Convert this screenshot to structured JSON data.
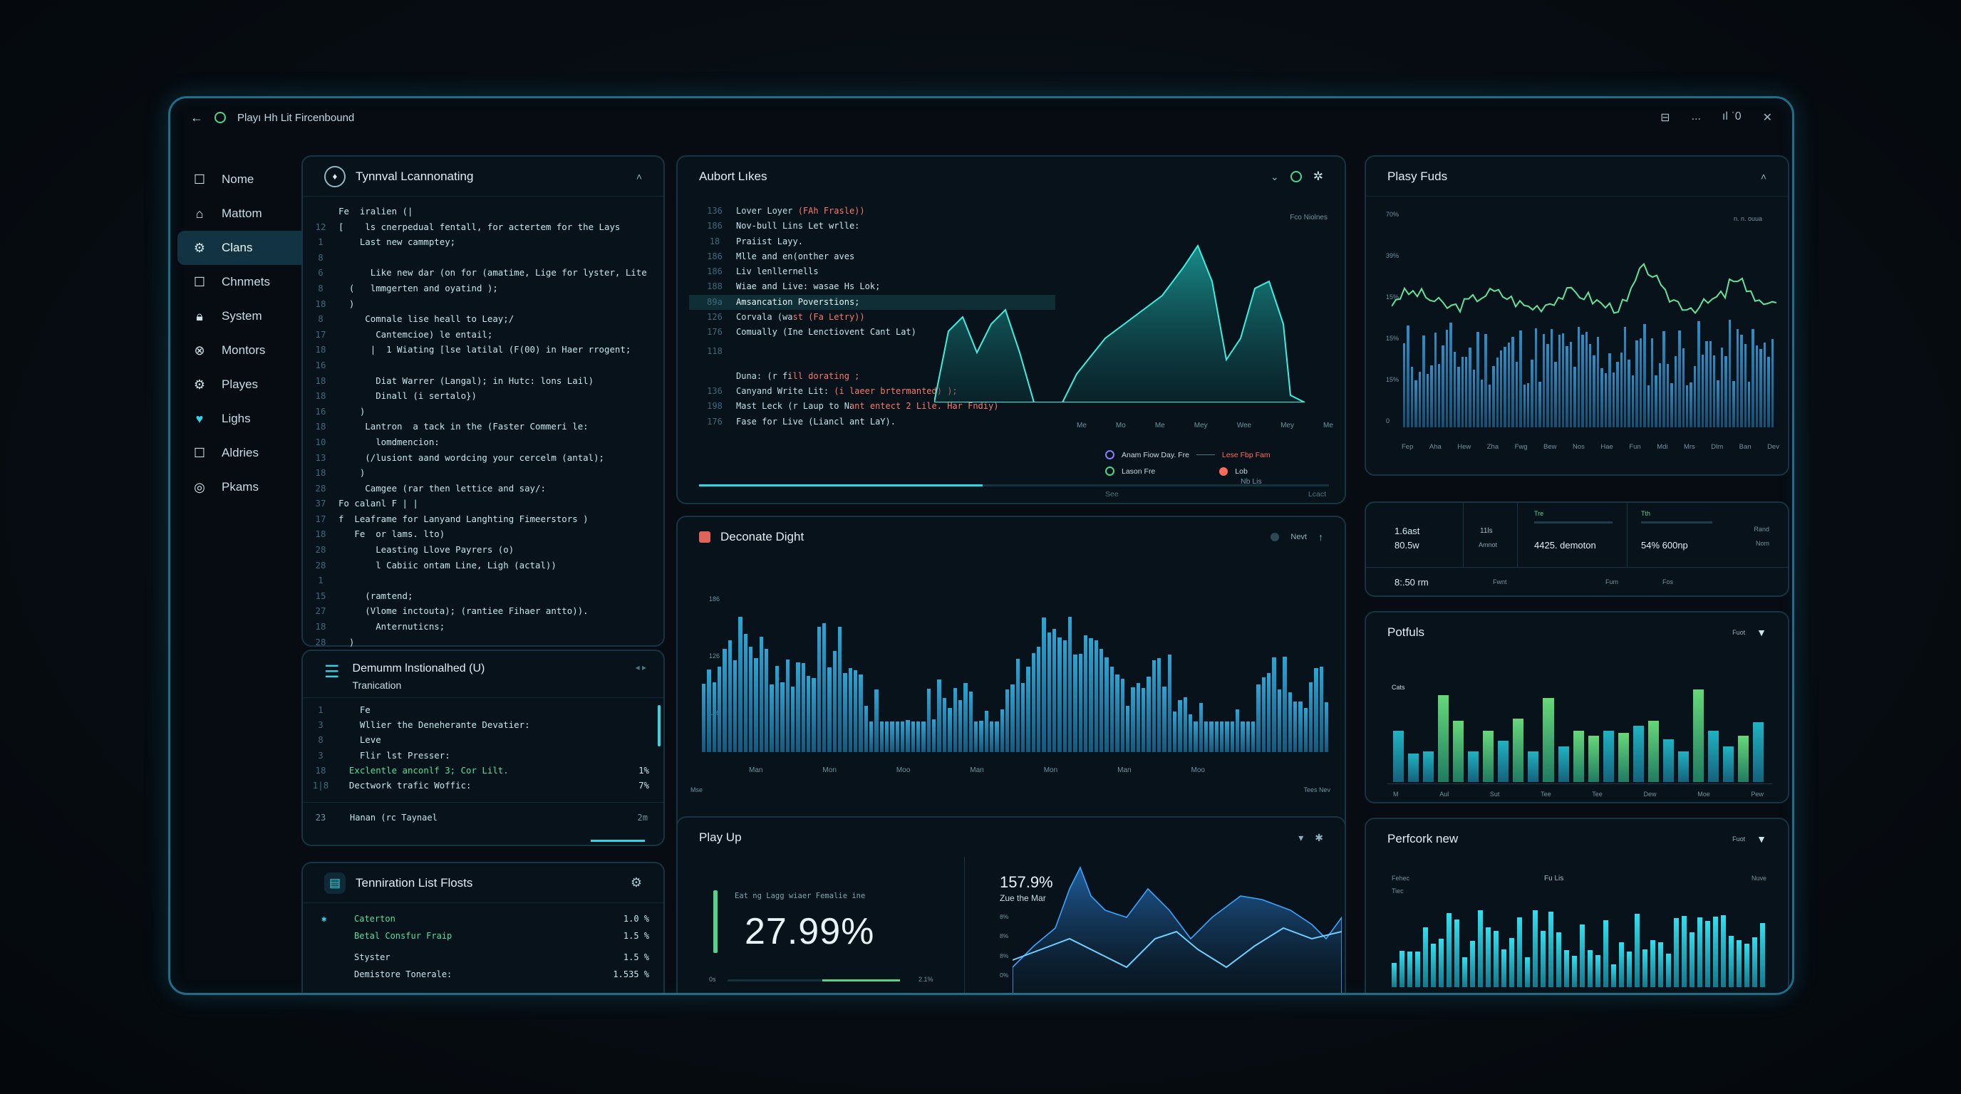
{
  "window": {
    "title": "Playı Hh  Lit  Fircenbound",
    "controls": [
      "⊟",
      "...",
      "ıl ˈ0",
      "✕"
    ]
  },
  "sidebar": {
    "items": [
      {
        "label": "Nome",
        "icon": "square-icon"
      },
      {
        "label": "Mattom",
        "icon": "home-icon"
      },
      {
        "label": "Clans",
        "icon": "gear-icon",
        "active": true
      },
      {
        "label": "Chnmets",
        "icon": "square-icon"
      },
      {
        "label": "System",
        "icon": "lock-icon"
      },
      {
        "label": "Montors",
        "icon": "x-circle-icon"
      },
      {
        "label": "Playes",
        "icon": "gear-icon"
      },
      {
        "label": "Lighs",
        "icon": "heart-icon"
      },
      {
        "label": "Aldries",
        "icon": "square-icon"
      },
      {
        "label": "Pkams",
        "icon": "circle-icon"
      }
    ]
  },
  "code_panel": {
    "title": "Tynnval Lcannonating",
    "lines": [
      {
        "n": "",
        "t": "Fe  iralien (|",
        "c": "w"
      },
      {
        "n": "12",
        "t": "[    ls cnerpedual fentall, for actertem for the Lays",
        "c": "w"
      },
      {
        "n": "1",
        "t": "    Last new cammptey;",
        "c": "w"
      },
      {
        "n": "8",
        "t": "",
        "c": "w"
      },
      {
        "n": "6",
        "t": "      Like new dar (on for (amatime, Lige for lyster, Lite",
        "c": "w"
      },
      {
        "n": "8",
        "t": "  (   lmmgerten and oyatind );",
        "c": "w"
      },
      {
        "n": "18",
        "t": "  )",
        "c": "w"
      },
      {
        "n": "8",
        "t": "     Comnale lise heall to Leay;/",
        "c": "w"
      },
      {
        "n": "17",
        "t": "       Cantemcioe) le entail;",
        "c": "w"
      },
      {
        "n": "18",
        "t": "      |  1 Wiating [lse latilal (F(00) in Haer rrogent;",
        "c": "w"
      },
      {
        "n": "16",
        "t": "",
        "c": "w"
      },
      {
        "n": "18",
        "t": "       Diat Warrer (Langal); in Hutc: lons Lail)",
        "c": "w"
      },
      {
        "n": "18",
        "t": "       Dinall (i sertalo})",
        "c": "w"
      },
      {
        "n": "16",
        "t": "    )",
        "c": "w"
      },
      {
        "n": "18",
        "t": "     Lantron  a tack in the (Faster Commeri le:",
        "c": "w"
      },
      {
        "n": "10",
        "t": "       lomdmencion:",
        "c": "w"
      },
      {
        "n": "13",
        "t": "     (/lusiont aand wordcing your cercelm (antal);",
        "c": "w"
      },
      {
        "n": "18",
        "t": "    )",
        "c": "w"
      },
      {
        "n": "28",
        "t": "     Camgee (rar then lettice and say/:",
        "c": "w"
      },
      {
        "n": "37",
        "t": "Fo calanl F | |",
        "c": "w"
      },
      {
        "n": "17",
        "t": "f  Leaframe for Lanyand Langhting Fimeerstors )",
        "c": "w"
      },
      {
        "n": "18",
        "t": "   Fe  or lams. lto)",
        "c": "w"
      },
      {
        "n": "28",
        "t": "       Leasting Llove Payrers (o)",
        "c": "w"
      },
      {
        "n": "28",
        "t": "       l Cabiic ontam Line, Ligh (actal))",
        "c": "w"
      },
      {
        "n": "1",
        "t": "",
        "c": "w"
      },
      {
        "n": "15",
        "t": "     (ramtend;",
        "c": "w"
      },
      {
        "n": "27",
        "t": "     (Vlome inctouta); (rantiee Fihaer antto)).",
        "c": "w"
      },
      {
        "n": "18",
        "t": "       Anternuticns;",
        "c": "w"
      },
      {
        "n": "28",
        "t": "  )",
        "c": "w"
      }
    ]
  },
  "domain_panel": {
    "title": "Demumm lnstionalhed (U)",
    "subtitle": "Tranication",
    "lines": [
      {
        "n": "1",
        "t": "    Fe",
        "c": "w",
        "p": ""
      },
      {
        "n": "3",
        "t": "    Wllier the Deneherante Devatier:",
        "c": "w",
        "p": ""
      },
      {
        "n": "8",
        "t": "    Leve",
        "c": "w",
        "p": ""
      },
      {
        "n": "3",
        "t": "    Flir lst Presser:",
        "c": "w",
        "p": ""
      },
      {
        "n": "18",
        "t": "  Exclentle anconlf 3; Cor Lilt.",
        "c": "g",
        "p": "1%"
      },
      {
        "n": "1|8",
        "t": "  Dectwork trafic Woffic:",
        "c": "w",
        "p": "7%"
      }
    ],
    "footer_n": "23",
    "footer": "Hanan (rc Taynael",
    "footer_r": "2m"
  },
  "termination_panel": {
    "title": "Tenniration List Flosts",
    "rows": [
      {
        "label": "Caterton",
        "value": "1.0 %",
        "mark": "✱"
      },
      {
        "label": "Betal Consfur Fraip",
        "value": "1.5 %",
        "mark": ""
      },
      {
        "label": "Styster",
        "value": "1.5 %",
        "mark": ""
      },
      {
        "label": "Demistore Tonerale:",
        "value": "1.535 %",
        "mark": ""
      }
    ]
  },
  "airport_panel": {
    "title": "Aubort Lıkes",
    "topright": "Fco Niolnes",
    "lines": [
      {
        "n": "136",
        "t": "Lover Loyer (FAh Frasle))",
        "c": "mix"
      },
      {
        "n": "186",
        "t": "Nov-bull Lins Let wrlle:",
        "c": "w"
      },
      {
        "n": "18",
        "t": "Praiist Layy.",
        "c": "w"
      },
      {
        "n": "186",
        "t": "Mlle and en(onther aves",
        "c": "w"
      },
      {
        "n": "186",
        "t": "Liv lenllernells",
        "c": "w"
      },
      {
        "n": "188",
        "t": "Wiae and Live: wasae Hs Lok;",
        "c": "w"
      },
      {
        "n": "89a",
        "t": "Amsancation Poverstions;",
        "c": "w",
        "hl": true
      },
      {
        "n": "126",
        "t": "Corvala (wast (Fa Letry))",
        "c": "mix2"
      },
      {
        "n": "176",
        "t": "Comually (Ine Lenctiovent Cant Lat)",
        "c": "w"
      },
      {
        "n": "118",
        "t": "",
        "c": "w"
      },
      {
        "n": "",
        "t": "Duna: (r fill dorating ;",
        "c": "mix3"
      },
      {
        "n": "136",
        "t": "Canyand Write Lit: (i laeer brtermanted) );",
        "c": "mix4"
      },
      {
        "n": "198",
        "t": "Mast Leck (r Laup to Nant entect 2 Lile. Har Fndiy)",
        "c": "mix5"
      },
      {
        "n": "176",
        "t": "Fase for Live (Liancl ant LaY).",
        "c": "w"
      }
    ],
    "xticks": [
      "Me",
      "Mo",
      "Me",
      "Mey",
      "Wee",
      "Mey",
      "Me"
    ],
    "legend": [
      {
        "label": "Anam  Fiow  Day. Fre",
        "color": "#8a7cff"
      },
      {
        "label": "Lason Fre",
        "color": "#51d48a"
      }
    ],
    "legend2": [
      {
        "label": "Lese  Fbp  Fam",
        "color": "#ff6b5b"
      },
      {
        "label": "Lob",
        "color": "#ff6b5b"
      },
      {
        "label": "Nb  Lis",
        "color": "#6f94a2"
      }
    ],
    "bottom": [
      "See",
      "Lcact"
    ]
  },
  "decorate_panel": {
    "title": "Deconate Dight",
    "right": "Nevt",
    "yticks": [
      "186",
      "126",
      "126"
    ],
    "xticks": [
      "Man",
      "Mon",
      "Moo",
      "Man",
      "Mon",
      "Man",
      "Moo"
    ],
    "left_bottom": "Mse",
    "right_bottom": "Tees Nev"
  },
  "playup_panel": {
    "title": "Play Up",
    "small_caption": "Eat   ng Lagg wiaer Femalie ine",
    "big_value": "27.99%",
    "scale_left": "0s",
    "scale_right": "2.1%",
    "progress": 0.45,
    "pct_label": "157.9%",
    "pct_sub": "Zue the Mar",
    "yticks": [
      "8%",
      "8%",
      "8%",
      "0%"
    ]
  },
  "plays_funds_panel": {
    "title": "Plasy Fuds",
    "tr": "n. n. ouua",
    "yticks": [
      "70%",
      "39%",
      "15%",
      "15%",
      "15%",
      "0"
    ],
    "months": [
      "Fep",
      "Aha",
      "Hew",
      "Zha",
      "Fwg",
      "Bew",
      "Nos",
      "Hae",
      "Fun",
      "Mdi",
      "Mrs",
      "Dlm",
      "Ban",
      "Dev"
    ]
  },
  "stats_panel": {
    "c1a": "1.6ast",
    "c1b": "80.5w",
    "c2a": "11ls",
    "c2b": "Amnot",
    "c3top": "Tre",
    "c3": "4425. demoton",
    "c4top": "Tth",
    "c4": "54% 600np",
    "c5a": "Rand",
    "c5b": "Nom",
    "b1": "8:.50 rm",
    "b2": "Fwnt",
    "b3": "Fum",
    "b4": "Fos"
  },
  "potfuls_panel": {
    "title": "Potfuls",
    "right": "Fuot",
    "ylabel": "Cats",
    "xticks": [
      "M",
      "Aul",
      "Sut",
      "Tee",
      "Tee",
      "Dew",
      "Moe",
      "Pew"
    ]
  },
  "perf_panel": {
    "title": "Perfcork new",
    "right": "Fuot",
    "l1": "Fehec",
    "l2": "Fu Lis",
    "l3": "Tiec",
    "r1": "Nuve"
  },
  "colors": {
    "accent": "#2fd6e6",
    "green": "#51d48a",
    "red": "#ff6b6b",
    "border": "#1f6d86"
  }
}
